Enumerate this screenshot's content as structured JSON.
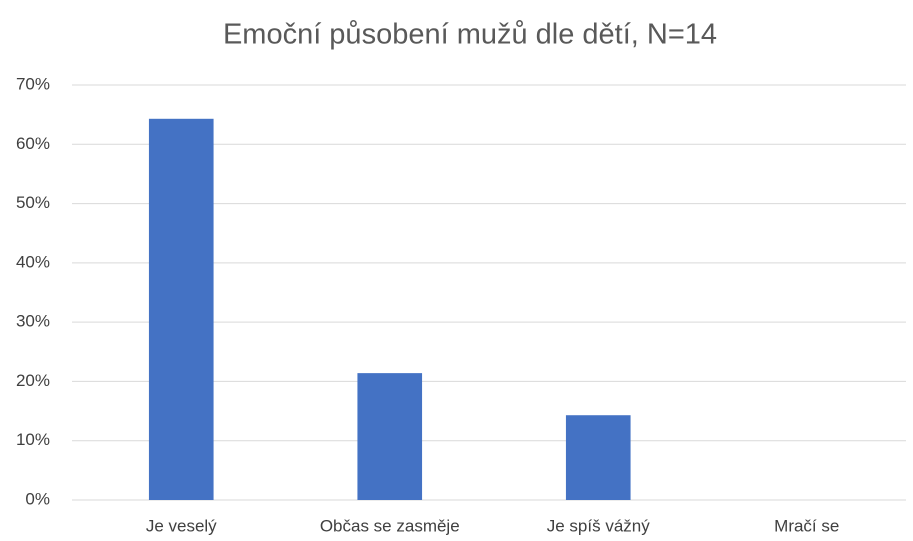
{
  "chart_data": {
    "type": "bar",
    "title": "Emoční působení mužů dle dětí, N=14",
    "categories": [
      "Je veselý",
      "Občas se zasměje",
      "Je spíš vážný",
      "Mračí se"
    ],
    "values": [
      64.3,
      21.4,
      14.3,
      0
    ],
    "color": "#4472c4",
    "ylim": [
      0,
      70
    ],
    "yticks": [
      {
        "value": 0,
        "label": "0%"
      },
      {
        "value": 10,
        "label": "10%"
      },
      {
        "value": 20,
        "label": "20%"
      },
      {
        "value": 30,
        "label": "30%"
      },
      {
        "value": 40,
        "label": "40%"
      },
      {
        "value": 50,
        "label": "50%"
      },
      {
        "value": 60,
        "label": "60%"
      },
      {
        "value": 70,
        "label": "70%"
      }
    ],
    "grid": true
  }
}
